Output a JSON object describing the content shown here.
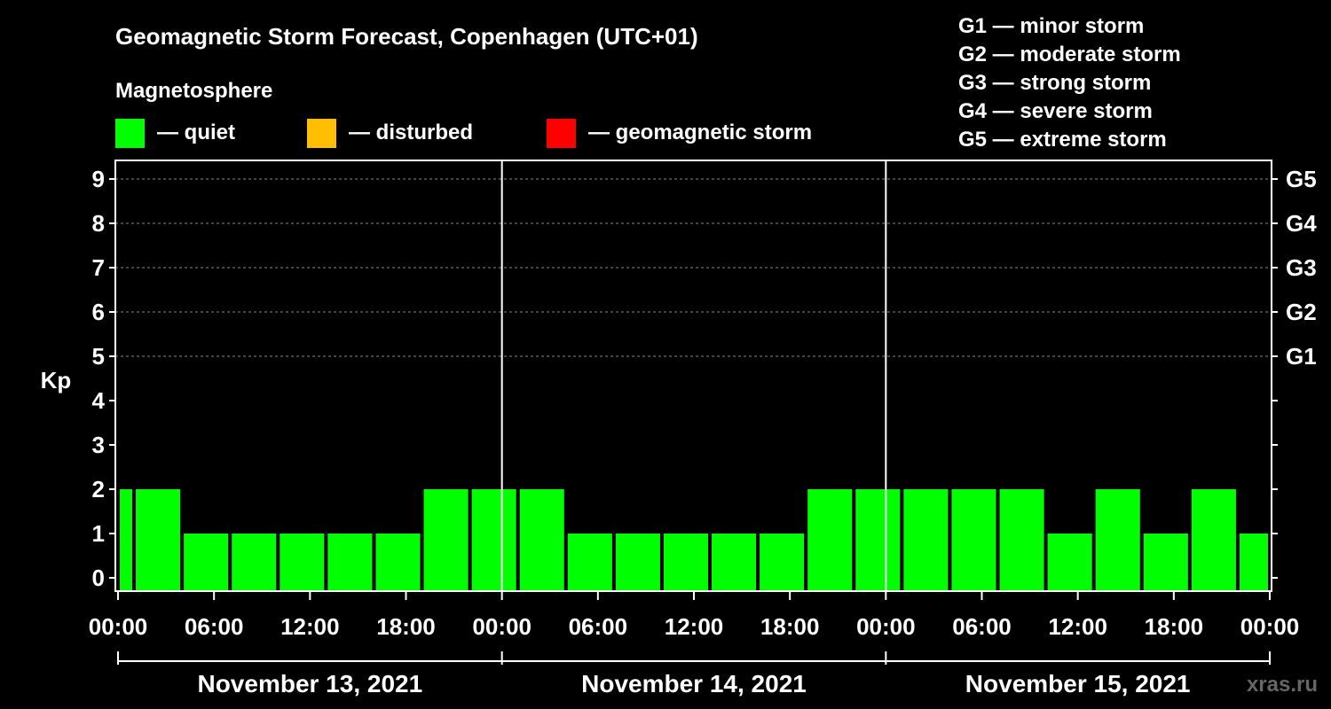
{
  "chart_data": {
    "type": "bar",
    "title": "Geomagnetic Storm Forecast, Copenhagen (UTC+01)",
    "subtitle": "Magnetosphere",
    "ylabel": "Kp",
    "ylim": [
      0,
      9
    ],
    "yticks": [
      "0",
      "1",
      "2",
      "3",
      "4",
      "5",
      "6",
      "7",
      "8",
      "9"
    ],
    "storm_levels": [
      {
        "kp": 5,
        "label": "G1"
      },
      {
        "kp": 6,
        "label": "G2"
      },
      {
        "kp": 7,
        "label": "G3"
      },
      {
        "kp": 8,
        "label": "G4"
      },
      {
        "kp": 9,
        "label": "G5"
      }
    ],
    "legend": [
      {
        "label": "— quiet",
        "color": "#00ff00"
      },
      {
        "label": "— disturbed",
        "color": "#ffbf00"
      },
      {
        "label": "— geomagnetic storm",
        "color": "#ff0000"
      }
    ],
    "storm_scale": [
      "G1 — minor storm",
      "G2 — moderate storm",
      "G3 — strong storm",
      "G4 — severe storm",
      "G5 — extreme storm"
    ],
    "x_range_hours": [
      0,
      72
    ],
    "xticks": [
      {
        "hour": 0,
        "label": "00:00"
      },
      {
        "hour": 6,
        "label": "06:00"
      },
      {
        "hour": 12,
        "label": "12:00"
      },
      {
        "hour": 18,
        "label": "18:00"
      },
      {
        "hour": 24,
        "label": "00:00"
      },
      {
        "hour": 30,
        "label": "06:00"
      },
      {
        "hour": 36,
        "label": "12:00"
      },
      {
        "hour": 42,
        "label": "18:00"
      },
      {
        "hour": 48,
        "label": "00:00"
      },
      {
        "hour": 54,
        "label": "06:00"
      },
      {
        "hour": 60,
        "label": "12:00"
      },
      {
        "hour": 66,
        "label": "18:00"
      },
      {
        "hour": 72,
        "label": "00:00"
      }
    ],
    "days": [
      {
        "label": "November 13, 2021",
        "start": 0,
        "end": 24
      },
      {
        "label": "November 14, 2021",
        "start": 24,
        "end": 48
      },
      {
        "label": "November 15, 2021",
        "start": 48,
        "end": 72
      }
    ],
    "series": [
      {
        "name": "Kp",
        "bars": [
          {
            "start": 0,
            "end": 1,
            "value": 2
          },
          {
            "start": 1,
            "end": 4,
            "value": 2
          },
          {
            "start": 4,
            "end": 7,
            "value": 1
          },
          {
            "start": 7,
            "end": 10,
            "value": 1
          },
          {
            "start": 10,
            "end": 13,
            "value": 1
          },
          {
            "start": 13,
            "end": 16,
            "value": 1
          },
          {
            "start": 16,
            "end": 19,
            "value": 1
          },
          {
            "start": 19,
            "end": 22,
            "value": 2
          },
          {
            "start": 22,
            "end": 25,
            "value": 2
          },
          {
            "start": 25,
            "end": 28,
            "value": 2
          },
          {
            "start": 28,
            "end": 31,
            "value": 1
          },
          {
            "start": 31,
            "end": 34,
            "value": 1
          },
          {
            "start": 34,
            "end": 37,
            "value": 1
          },
          {
            "start": 37,
            "end": 40,
            "value": 1
          },
          {
            "start": 40,
            "end": 43,
            "value": 1
          },
          {
            "start": 43,
            "end": 46,
            "value": 2
          },
          {
            "start": 46,
            "end": 49,
            "value": 2
          },
          {
            "start": 49,
            "end": 52,
            "value": 2
          },
          {
            "start": 52,
            "end": 55,
            "value": 2
          },
          {
            "start": 55,
            "end": 58,
            "value": 2
          },
          {
            "start": 58,
            "end": 61,
            "value": 1
          },
          {
            "start": 61,
            "end": 64,
            "value": 2
          },
          {
            "start": 64,
            "end": 67,
            "value": 1
          },
          {
            "start": 67,
            "end": 70,
            "value": 2
          },
          {
            "start": 70,
            "end": 72,
            "value": 1
          }
        ]
      }
    ],
    "watermark": "xras.ru"
  }
}
